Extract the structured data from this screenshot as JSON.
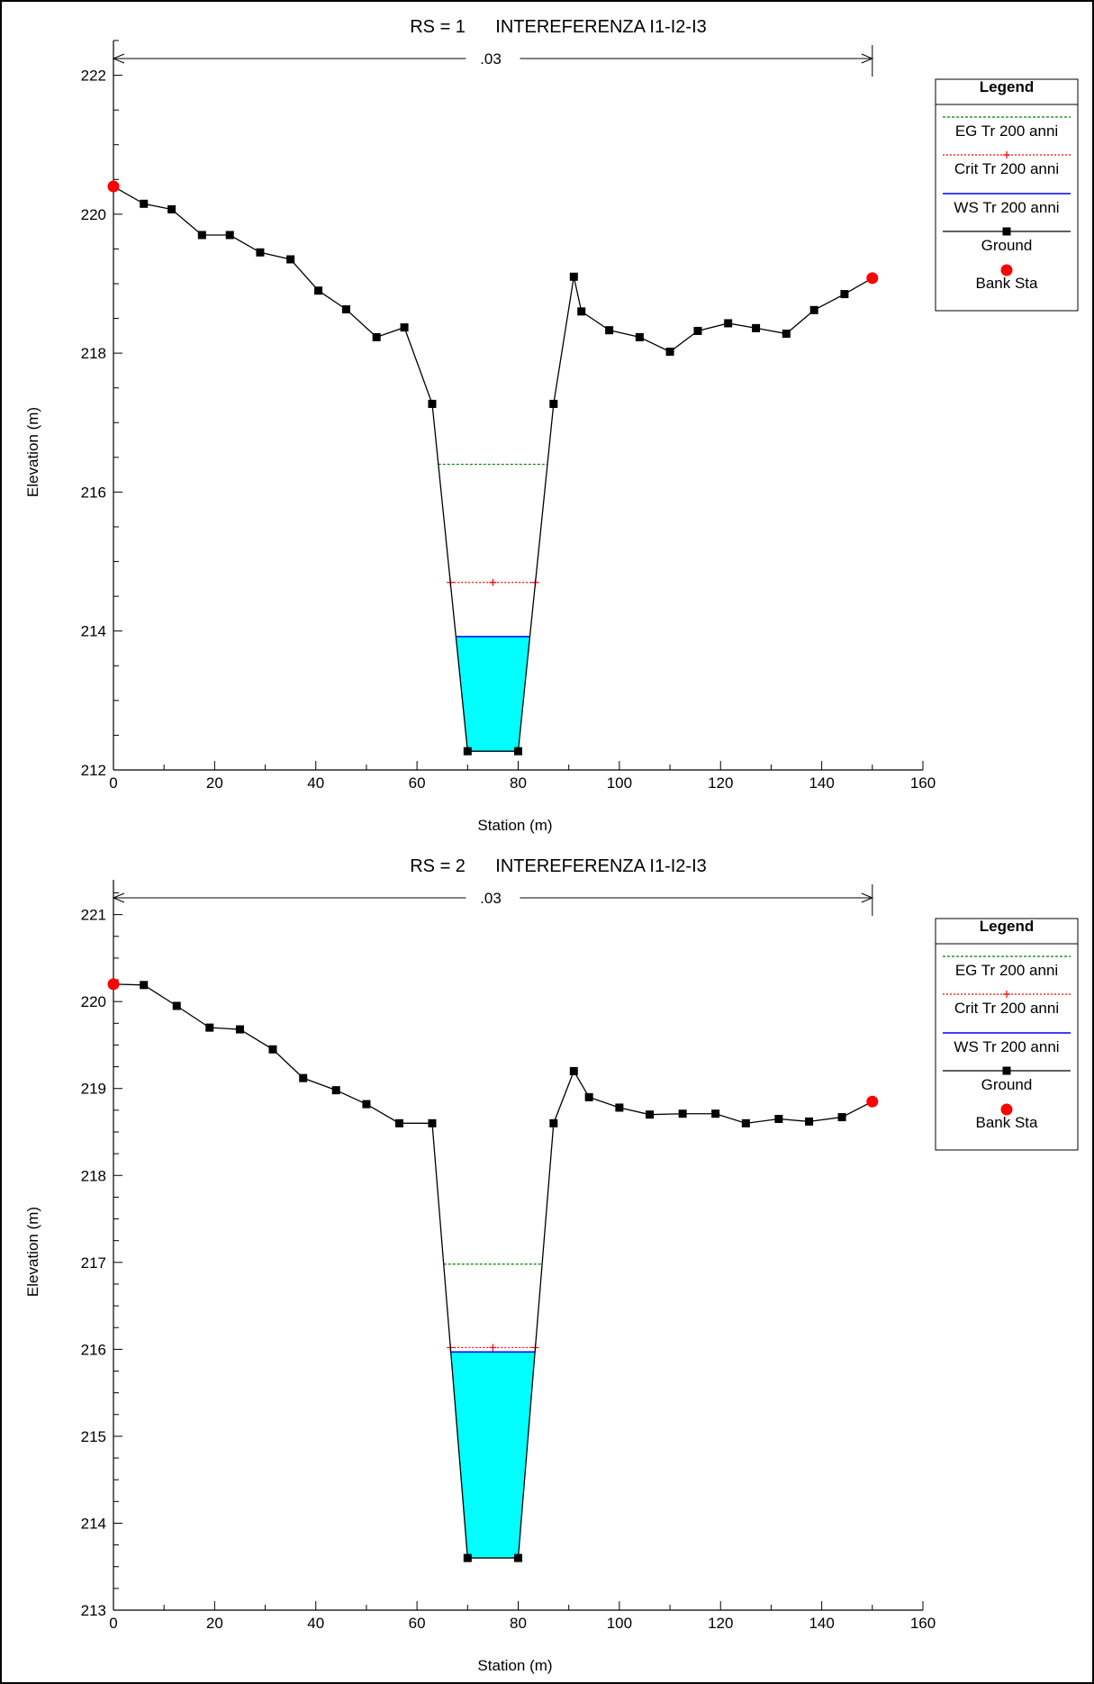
{
  "chart_data": [
    {
      "type": "line",
      "title": "RS = 1      INTEREFERENZA I1-I2-I3",
      "xlabel": "Station (m)",
      "ylabel": "Elevation (m)",
      "xlim": [
        0,
        160
      ],
      "ylim": [
        212,
        222.5
      ],
      "x_ticks": [
        0,
        20,
        40,
        60,
        80,
        100,
        120,
        140,
        160
      ],
      "y_ticks": [
        212,
        214,
        216,
        218,
        220,
        222
      ],
      "grid": false,
      "legend_position": "top-right",
      "legend": {
        "title": "Legend",
        "items": [
          "EG Tr 200 anni",
          "Crit Tr 200 anni",
          "WS Tr 200 anni",
          "Ground",
          "Bank Sta"
        ]
      },
      "manning": {
        "label": ".03",
        "x_start": 0,
        "x_end": 150
      },
      "colors": {
        "eg": "#008000",
        "crit": "#ff0000",
        "ws": "#0000ff",
        "ground": "#000000",
        "bank": "#ff0000",
        "water_fill": "#00ffff"
      },
      "series": [
        {
          "name": "Ground",
          "x": [
            0,
            6,
            11.5,
            17.5,
            23,
            29,
            35,
            40.5,
            46,
            52,
            57.5,
            63,
            70,
            80,
            87,
            91,
            92.5,
            98,
            104,
            110,
            115.5,
            121.5,
            127,
            133,
            138.5,
            144.5,
            150
          ],
          "y": [
            220.4,
            220.15,
            220.07,
            219.7,
            219.7,
            219.45,
            219.35,
            218.9,
            218.63,
            218.23,
            218.37,
            217.27,
            212.27,
            212.27,
            217.27,
            219.1,
            218.6,
            218.33,
            218.23,
            218.02,
            218.32,
            218.43,
            218.36,
            218.28,
            218.62,
            218.85,
            219.08
          ]
        },
        {
          "name": "EG Tr 200 anni",
          "elevation": 216.4
        },
        {
          "name": "Crit Tr 200 anni",
          "elevation": 214.7,
          "marker_x": 75
        },
        {
          "name": "WS Tr 200 anni",
          "elevation": 213.92
        },
        {
          "name": "Bank Sta",
          "x": [
            0,
            150
          ],
          "y": [
            220.4,
            219.08
          ]
        }
      ]
    },
    {
      "type": "line",
      "title": "RS = 2      INTEREFERENZA I1-I2-I3",
      "xlabel": "Station (m)",
      "ylabel": "Elevation (m)",
      "xlim": [
        0,
        160
      ],
      "ylim": [
        213,
        221.4
      ],
      "x_ticks": [
        0,
        20,
        40,
        60,
        80,
        100,
        120,
        140,
        160
      ],
      "y_ticks": [
        213,
        214,
        215,
        216,
        217,
        218,
        219,
        220,
        221
      ],
      "grid": false,
      "legend_position": "top-right",
      "legend": {
        "title": "Legend",
        "items": [
          "EG Tr 200 anni",
          "Crit Tr 200 anni",
          "WS Tr 200 anni",
          "Ground",
          "Bank Sta"
        ]
      },
      "manning": {
        "label": ".03",
        "x_start": 0,
        "x_end": 150
      },
      "colors": {
        "eg": "#008000",
        "crit": "#ff0000",
        "ws": "#0000ff",
        "ground": "#000000",
        "bank": "#ff0000",
        "water_fill": "#00ffff"
      },
      "series": [
        {
          "name": "Ground",
          "x": [
            0,
            6,
            12.5,
            19,
            25,
            31.5,
            37.5,
            44,
            50,
            56.5,
            63,
            70,
            80,
            87,
            91,
            94,
            100,
            106,
            112.5,
            119,
            125,
            131.5,
            137.5,
            144,
            150
          ],
          "y": [
            220.2,
            220.19,
            219.95,
            219.7,
            219.68,
            219.45,
            219.12,
            218.98,
            218.82,
            218.6,
            218.6,
            213.6,
            213.6,
            218.6,
            219.2,
            218.9,
            218.78,
            218.7,
            218.71,
            218.71,
            218.6,
            218.65,
            218.62,
            218.67,
            218.85
          ]
        },
        {
          "name": "EG Tr 200 anni",
          "elevation": 216.98
        },
        {
          "name": "Crit Tr 200 anni",
          "elevation": 216.02,
          "marker_x": 75
        },
        {
          "name": "WS Tr 200 anni",
          "elevation": 215.97
        },
        {
          "name": "Bank Sta",
          "x": [
            0,
            150
          ],
          "y": [
            220.2,
            218.85
          ]
        }
      ]
    }
  ]
}
